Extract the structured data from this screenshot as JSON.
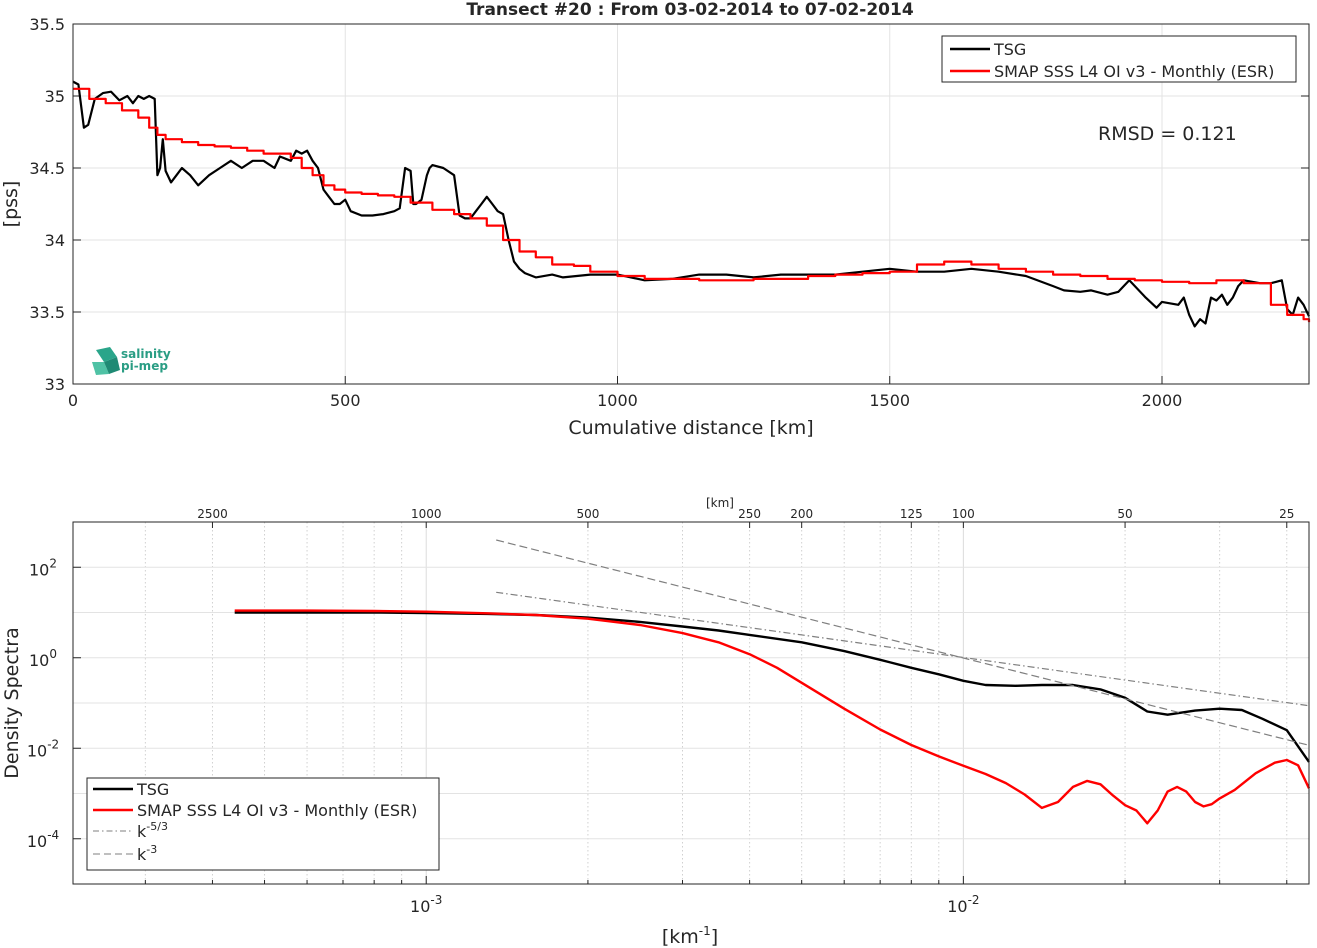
{
  "chart_data": [
    {
      "type": "line",
      "title": "Transect #20 : From 03-02-2014 to 07-02-2014",
      "xlabel": "Cumulative distance [km]",
      "ylabel": "[pss]",
      "xlim": [
        0,
        2270
      ],
      "ylim": [
        33,
        35.5
      ],
      "grid": true,
      "legend_placement": "top-right",
      "x_ticks": [
        "0",
        "500",
        "1000",
        "1500",
        "2000"
      ],
      "x_tick_values": [
        0,
        500,
        1000,
        1500,
        2000
      ],
      "y_ticks": [
        "33",
        "33.5",
        "34",
        "34.5",
        "35",
        "35.5"
      ],
      "y_tick_values": [
        33,
        33.5,
        34,
        34.5,
        35,
        35.5
      ],
      "annotation": "RMSD = 0.121",
      "logo_text": [
        "salinity",
        "pi-mep"
      ],
      "series": [
        {
          "name": "TSG",
          "color": "#000000",
          "x": [
            0,
            10,
            20,
            28,
            40,
            55,
            70,
            85,
            100,
            110,
            120,
            130,
            140,
            150,
            155,
            160,
            165,
            170,
            180,
            190,
            200,
            215,
            230,
            250,
            270,
            290,
            310,
            330,
            350,
            370,
            380,
            400,
            410,
            420,
            430,
            440,
            450,
            460,
            470,
            480,
            490,
            500,
            510,
            530,
            550,
            570,
            590,
            600,
            610,
            620,
            625,
            630,
            640,
            650,
            655,
            660,
            680,
            700,
            710,
            720,
            730,
            740,
            750,
            760,
            770,
            780,
            790,
            800,
            810,
            820,
            830,
            850,
            880,
            900,
            950,
            1000,
            1050,
            1100,
            1150,
            1200,
            1250,
            1300,
            1350,
            1400,
            1450,
            1500,
            1550,
            1600,
            1650,
            1700,
            1750,
            1800,
            1820,
            1850,
            1870,
            1900,
            1920,
            1940,
            1970,
            1990,
            2000,
            2030,
            2040,
            2050,
            2060,
            2070,
            2080,
            2090,
            2100,
            2110,
            2120,
            2130,
            2140,
            2150,
            2180,
            2200,
            2210,
            2220,
            2230,
            2240,
            2250,
            2260,
            2270
          ],
          "y": [
            35.1,
            35.08,
            34.78,
            34.8,
            34.98,
            35.02,
            35.03,
            34.97,
            35.0,
            34.95,
            35.0,
            34.98,
            35.0,
            34.98,
            34.45,
            34.5,
            34.7,
            34.48,
            34.4,
            34.45,
            34.5,
            34.45,
            34.38,
            34.45,
            34.5,
            34.55,
            34.5,
            34.55,
            34.55,
            34.5,
            34.58,
            34.55,
            34.62,
            34.6,
            34.62,
            34.55,
            34.5,
            34.35,
            34.3,
            34.25,
            34.25,
            34.28,
            34.2,
            34.17,
            34.17,
            34.18,
            34.2,
            34.22,
            34.5,
            34.48,
            34.25,
            34.25,
            34.28,
            34.45,
            34.5,
            34.52,
            34.5,
            34.45,
            34.17,
            34.15,
            34.15,
            34.2,
            34.25,
            34.3,
            34.25,
            34.2,
            34.18,
            34.0,
            33.85,
            33.8,
            33.77,
            33.74,
            33.76,
            33.74,
            33.76,
            33.76,
            33.72,
            33.73,
            33.76,
            33.76,
            33.74,
            33.76,
            33.76,
            33.76,
            33.78,
            33.8,
            33.78,
            33.78,
            33.8,
            33.78,
            33.75,
            33.68,
            33.65,
            33.64,
            33.65,
            33.62,
            33.64,
            33.72,
            33.6,
            33.53,
            33.57,
            33.55,
            33.6,
            33.48,
            33.4,
            33.45,
            33.42,
            33.6,
            33.58,
            33.62,
            33.55,
            33.6,
            33.68,
            33.72,
            33.7,
            33.7,
            33.71,
            33.72,
            33.52,
            33.48,
            33.6,
            33.55,
            33.47
          ]
        },
        {
          "name": "SMAP SSS L4 OI v3 - Monthly (ESR)",
          "color": "#ff0000",
          "x": [
            0,
            15,
            30,
            60,
            90,
            120,
            140,
            155,
            170,
            200,
            230,
            260,
            290,
            320,
            350,
            370,
            400,
            420,
            440,
            460,
            480,
            500,
            530,
            560,
            590,
            620,
            660,
            700,
            730,
            760,
            790,
            820,
            850,
            880,
            920,
            950,
            1000,
            1050,
            1100,
            1150,
            1200,
            1250,
            1300,
            1350,
            1400,
            1450,
            1500,
            1550,
            1600,
            1650,
            1700,
            1750,
            1800,
            1850,
            1900,
            1950,
            2000,
            2050,
            2100,
            2150,
            2200,
            2230,
            2260,
            2270
          ],
          "y": [
            35.05,
            35.05,
            34.98,
            34.95,
            34.9,
            34.85,
            34.78,
            34.73,
            34.7,
            34.68,
            34.66,
            34.65,
            34.64,
            34.62,
            34.6,
            34.6,
            34.57,
            34.5,
            34.45,
            34.38,
            34.35,
            34.33,
            34.32,
            34.31,
            34.3,
            34.26,
            34.21,
            34.18,
            34.15,
            34.1,
            34.0,
            33.92,
            33.88,
            33.83,
            33.82,
            33.78,
            33.75,
            33.73,
            33.73,
            33.72,
            33.72,
            33.73,
            33.73,
            33.75,
            33.76,
            33.77,
            33.78,
            33.83,
            33.85,
            33.83,
            33.8,
            33.78,
            33.76,
            33.75,
            33.73,
            33.72,
            33.71,
            33.7,
            33.72,
            33.7,
            33.55,
            33.48,
            33.45,
            33.43
          ]
        }
      ]
    },
    {
      "type": "line",
      "xlabel": "[km-1]",
      "ylabel": "Density Spectra",
      "x_scale": "log",
      "y_scale": "log",
      "xlim": [
        0.00022,
        0.044
      ],
      "ylim": [
        1e-05,
        1000
      ],
      "grid": true,
      "legend_placement": "bottom-left",
      "top_axis_label": "[km]",
      "top_ticks": [
        "2500",
        "1000",
        "500",
        "250",
        "200",
        "125",
        "100",
        "50",
        "25"
      ],
      "top_tick_values": [
        2500,
        1000,
        500,
        250,
        200,
        125,
        100,
        50,
        25
      ],
      "x_ticks": [
        "10",
        "10"
      ],
      "x_tick_exponents": [
        "-3",
        "-2"
      ],
      "x_tick_values": [
        0.001,
        0.01
      ],
      "y_ticks": [
        "10",
        "10",
        "10",
        "10"
      ],
      "y_tick_exponents": [
        "-4",
        "-2",
        "0",
        "2"
      ],
      "y_tick_values": [
        0.0001,
        0.01,
        1,
        100
      ],
      "series": [
        {
          "name": "TSG",
          "color": "#000000",
          "x": [
            0.00044,
            0.0006,
            0.0008,
            0.001,
            0.0013,
            0.0016,
            0.002,
            0.0025,
            0.003,
            0.0035,
            0.004,
            0.005,
            0.006,
            0.007,
            0.008,
            0.009,
            0.01,
            0.011,
            0.0125,
            0.014,
            0.016,
            0.018,
            0.02,
            0.022,
            0.024,
            0.027,
            0.03,
            0.033,
            0.036,
            0.04,
            0.044
          ],
          "y": [
            10,
            10,
            10,
            9.7,
            9.3,
            8.8,
            7.7,
            6.2,
            4.9,
            4.0,
            3.2,
            2.2,
            1.4,
            0.9,
            0.6,
            0.43,
            0.31,
            0.25,
            0.24,
            0.25,
            0.25,
            0.2,
            0.13,
            0.065,
            0.055,
            0.068,
            0.075,
            0.07,
            0.045,
            0.025,
            0.005
          ]
        },
        {
          "name": "SMAP SSS L4 OI v3 - Monthly (ESR)",
          "color": "#ff0000",
          "x": [
            0.00044,
            0.0006,
            0.0008,
            0.001,
            0.0013,
            0.0016,
            0.002,
            0.0025,
            0.003,
            0.0035,
            0.004,
            0.0045,
            0.005,
            0.006,
            0.007,
            0.008,
            0.009,
            0.01,
            0.011,
            0.012,
            0.013,
            0.014,
            0.015,
            0.016,
            0.017,
            0.018,
            0.019,
            0.02,
            0.021,
            0.022,
            0.023,
            0.024,
            0.025,
            0.026,
            0.027,
            0.028,
            0.029,
            0.03,
            0.032,
            0.035,
            0.038,
            0.04,
            0.042,
            0.044
          ],
          "y": [
            11,
            11,
            10.8,
            10.4,
            9.6,
            8.8,
            7.3,
            5.3,
            3.5,
            2.2,
            1.2,
            0.6,
            0.28,
            0.075,
            0.026,
            0.0118,
            0.0066,
            0.0041,
            0.0027,
            0.0017,
            0.00095,
            0.00048,
            0.00065,
            0.0014,
            0.0019,
            0.0016,
            0.0009,
            0.00055,
            0.00042,
            0.00022,
            0.00042,
            0.0011,
            0.0014,
            0.0011,
            0.00065,
            0.00052,
            0.00058,
            0.00078,
            0.0012,
            0.0028,
            0.0048,
            0.0055,
            0.0042,
            0.0013
          ]
        },
        {
          "name": "k^-5/3",
          "name_base": "k",
          "name_exponent": "-5/3",
          "color": "#7f7f7f",
          "dash": "dashdot",
          "x": [
            0.00135,
            0.044
          ],
          "y": [
            28,
            0.087
          ]
        },
        {
          "name": "k^-3",
          "name_base": "k",
          "name_exponent": "-3",
          "color": "#7f7f7f",
          "dash": "dash",
          "x": [
            0.00135,
            0.044
          ],
          "y": [
            400,
            0.0116
          ]
        }
      ]
    }
  ]
}
